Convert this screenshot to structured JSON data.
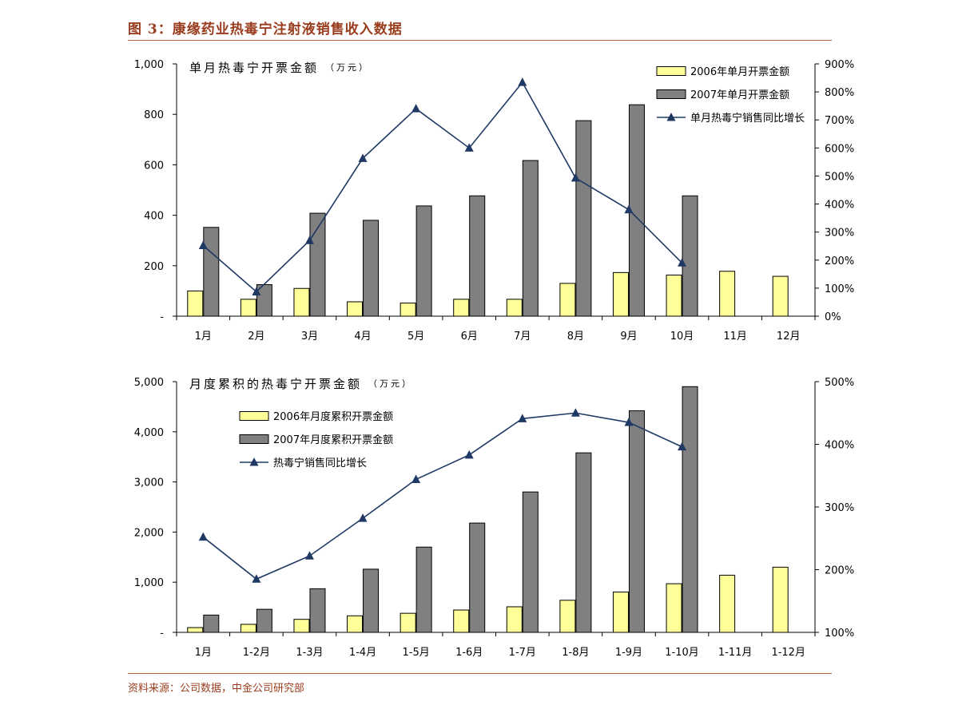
{
  "header": {
    "figure_title": "图 3：康缘药业热毒宁注射液销售收入数据"
  },
  "footer": {
    "source": "资料来源：公司数据，中金公司研究部"
  },
  "colors": {
    "bar_2006": "#ffff99",
    "bar_2007": "#808080",
    "line": "#1f3864",
    "accent": "#9a3d1e",
    "rule": "#b2673f"
  },
  "chart_data": [
    {
      "type": "bar",
      "title": "单月热毒宁开票金额",
      "unit": "（万元）",
      "categories": [
        "1月",
        "2月",
        "3月",
        "4月",
        "5月",
        "6月",
        "7月",
        "8月",
        "9月",
        "10月",
        "11月",
        "12月"
      ],
      "series": [
        {
          "name": "2006年单月开票金额",
          "type": "bar",
          "axis": "left",
          "color": "#ffff99",
          "values": [
            100,
            67,
            110,
            57,
            52,
            67,
            67,
            130,
            173,
            163,
            178,
            158
          ]
        },
        {
          "name": "2007年单月开票金额",
          "type": "bar",
          "axis": "left",
          "color": "#808080",
          "values": [
            352,
            125,
            408,
            380,
            437,
            477,
            617,
            775,
            838,
            477,
            null,
            null
          ]
        },
        {
          "name": "单月热毒宁销售同比增长",
          "type": "line",
          "axis": "right",
          "color": "#1f3864",
          "marker": "triangle",
          "values": [
            252,
            87,
            270,
            563,
            740,
            600,
            834,
            493,
            380,
            190,
            null,
            null
          ]
        }
      ],
      "ylim": [
        0,
        1000
      ],
      "yticks": [
        0,
        200,
        400,
        600,
        800,
        1000
      ],
      "ytick_labels": [
        "-",
        "200",
        "400",
        "600",
        "800",
        "1,000"
      ],
      "y2lim": [
        0,
        900
      ],
      "y2ticks": [
        0,
        100,
        200,
        300,
        400,
        500,
        600,
        700,
        800,
        900
      ],
      "y2tick_labels": [
        "0%",
        "100%",
        "200%",
        "300%",
        "400%",
        "500%",
        "600%",
        "700%",
        "800%",
        "900%"
      ],
      "legend_position": "top-right",
      "grid": false
    },
    {
      "type": "bar",
      "title": "月度累积的热毒宁开票金额",
      "unit": "（万元）",
      "categories": [
        "1月",
        "1-2月",
        "1-3月",
        "1-4月",
        "1-5月",
        "1-6月",
        "1-7月",
        "1-8月",
        "1-9月",
        "1-10月",
        "1-11月",
        "1-12月"
      ],
      "series": [
        {
          "name": "2006年月度累积开票金额",
          "type": "bar",
          "axis": "left",
          "color": "#ffff99",
          "values": [
            95,
            160,
            260,
            330,
            380,
            445,
            510,
            640,
            805,
            970,
            1140,
            1300
          ]
        },
        {
          "name": "2007年月度累积开票金额",
          "type": "bar",
          "axis": "left",
          "color": "#808080",
          "values": [
            345,
            460,
            870,
            1260,
            1700,
            2180,
            2800,
            3580,
            4420,
            4900,
            null,
            null
          ]
        },
        {
          "name": "热毒宁销售同比增长",
          "type": "line",
          "axis": "right",
          "color": "#1f3864",
          "marker": "triangle",
          "values": [
            252,
            185,
            222,
            282,
            344,
            383,
            441,
            450,
            435,
            396,
            null,
            null
          ]
        }
      ],
      "ylim": [
        0,
        5000
      ],
      "yticks": [
        0,
        1000,
        2000,
        3000,
        4000,
        5000
      ],
      "ytick_labels": [
        "-",
        "1,000",
        "2,000",
        "3,000",
        "4,000",
        "5,000"
      ],
      "y2lim": [
        100,
        500
      ],
      "y2ticks": [
        100,
        200,
        300,
        400,
        500
      ],
      "y2tick_labels": [
        "100%",
        "200%",
        "300%",
        "400%",
        "500%"
      ],
      "legend_position": "top-left",
      "grid": false
    }
  ]
}
